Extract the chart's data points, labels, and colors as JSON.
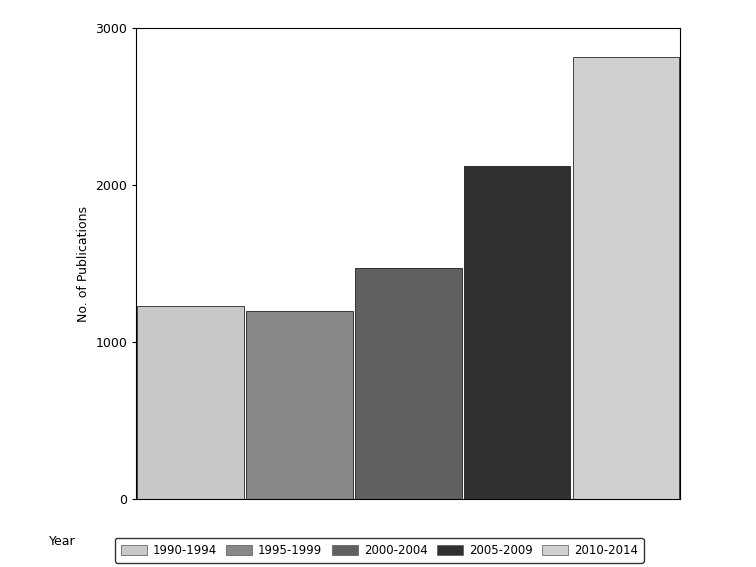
{
  "categories": [
    "1990-1994",
    "1995-1999",
    "2000-2004",
    "2005-2009",
    "2010-2014"
  ],
  "values": [
    1230,
    1200,
    1470,
    2120,
    2820
  ],
  "bar_colors": [
    "#c8c8c8",
    "#888888",
    "#606060",
    "#303030",
    "#d0d0d0"
  ],
  "ylabel": "No. of Publications",
  "ylim": [
    0,
    3000
  ],
  "yticks": [
    0,
    1000,
    2000,
    3000
  ],
  "legend_label": "Year",
  "background_color": "#ffffff",
  "edge_color": "#000000",
  "bar_width": 0.98
}
